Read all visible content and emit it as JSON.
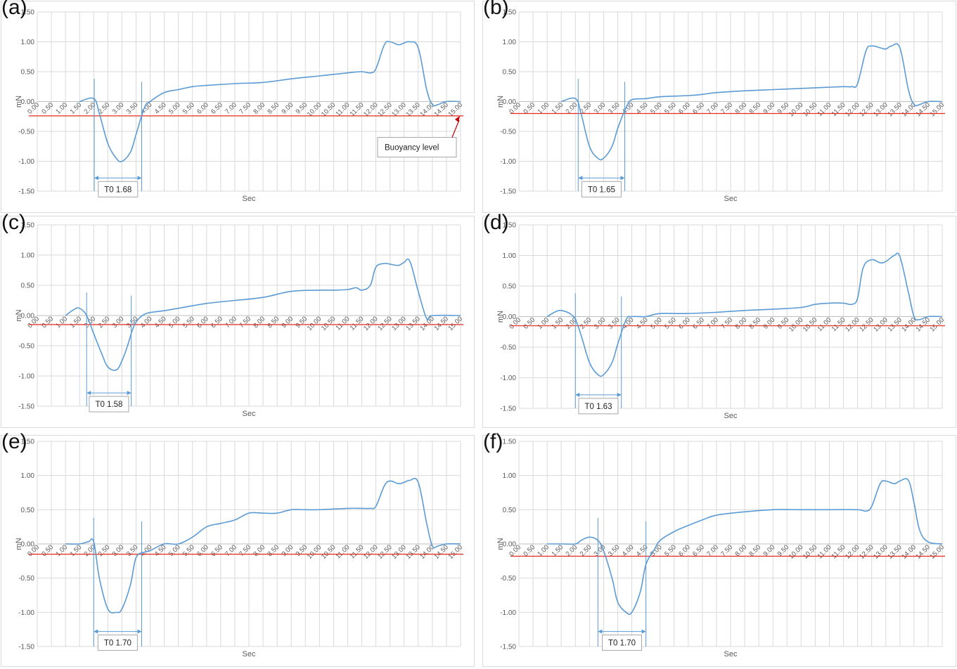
{
  "chart_data": [
    {
      "panel_label": "(a)",
      "type": "line",
      "xlabel": "Sec",
      "ylabel": "mN",
      "ylim": [
        -1.5,
        1.5
      ],
      "xlim": [
        0,
        15
      ],
      "buoyancy_level": -0.24,
      "t0_label": "T0 1.68",
      "t0_start": 2.02,
      "t0_end": 3.7,
      "annotation": {
        "text": "Buoyancy level",
        "target_x": 15.0
      },
      "series": [
        {
          "x": [
            1.5,
            2.0,
            2.2,
            2.5,
            2.8,
            3.0,
            3.3,
            3.5,
            3.8,
            4.0,
            4.5,
            5.0,
            5.5,
            6.0,
            7.0,
            8.0,
            9.0,
            10.0,
            11.0,
            11.5,
            11.8,
            12.0,
            12.3,
            12.5,
            12.8,
            13.0,
            13.2,
            13.5,
            13.8,
            14.0,
            14.2,
            14.5,
            15.0
          ],
          "y": [
            0.0,
            0.05,
            -0.2,
            -0.7,
            -0.95,
            -1.0,
            -0.85,
            -0.55,
            -0.1,
            0.0,
            0.15,
            0.2,
            0.25,
            0.27,
            0.3,
            0.32,
            0.38,
            0.43,
            0.48,
            0.5,
            0.48,
            0.55,
            0.95,
            1.0,
            0.95,
            0.98,
            1.0,
            0.9,
            0.2,
            -0.05,
            -0.05,
            0.0,
            0.0
          ]
        }
      ]
    },
    {
      "panel_label": "(b)",
      "type": "line",
      "xlabel": "Sec",
      "ylabel": "mN",
      "ylim": [
        -1.5,
        1.5
      ],
      "xlim": [
        0,
        15
      ],
      "buoyancy_level": -0.2,
      "t0_label": "T0 1.65",
      "t0_start": 2.1,
      "t0_end": 3.75,
      "series": [
        {
          "x": [
            1.5,
            2.0,
            2.2,
            2.5,
            2.8,
            3.0,
            3.3,
            3.5,
            3.8,
            4.0,
            4.5,
            5.0,
            6.0,
            6.5,
            7.0,
            8.0,
            9.0,
            10.0,
            11.0,
            11.5,
            11.8,
            12.0,
            12.3,
            12.5,
            12.8,
            13.0,
            13.2,
            13.5,
            13.8,
            14.0,
            14.2,
            14.5,
            15.0
          ],
          "y": [
            0.0,
            0.05,
            -0.2,
            -0.75,
            -0.95,
            -0.95,
            -0.75,
            -0.45,
            -0.1,
            0.03,
            0.05,
            0.08,
            0.1,
            0.12,
            0.15,
            0.18,
            0.2,
            0.22,
            0.24,
            0.25,
            0.25,
            0.3,
            0.85,
            0.93,
            0.9,
            0.88,
            0.93,
            0.9,
            0.2,
            -0.05,
            -0.05,
            0.0,
            0.0
          ]
        }
      ]
    },
    {
      "panel_label": "(c)",
      "type": "line",
      "xlabel": "Sec",
      "ylabel": "mN",
      "ylim": [
        -1.5,
        1.5
      ],
      "xlim": [
        0,
        15
      ],
      "buoyancy_level": -0.15,
      "t0_label": "T0 1.58",
      "t0_start": 1.75,
      "t0_end": 3.33,
      "series": [
        {
          "x": [
            1.0,
            1.3,
            1.5,
            1.75,
            2.0,
            2.3,
            2.5,
            2.8,
            3.0,
            3.2,
            3.4,
            3.6,
            3.8,
            4.0,
            4.5,
            5.0,
            6.0,
            7.0,
            8.0,
            9.0,
            10.0,
            10.5,
            11.0,
            11.3,
            11.5,
            11.8,
            12.0,
            12.3,
            12.5,
            12.8,
            13.0,
            13.2,
            13.5,
            13.8,
            14.0,
            15.0
          ],
          "y": [
            0.0,
            0.1,
            0.12,
            0.0,
            -0.3,
            -0.65,
            -0.85,
            -0.9,
            -0.75,
            -0.5,
            -0.2,
            -0.05,
            0.02,
            0.05,
            0.08,
            0.12,
            0.2,
            0.25,
            0.3,
            0.4,
            0.42,
            0.42,
            0.43,
            0.46,
            0.42,
            0.5,
            0.8,
            0.86,
            0.85,
            0.83,
            0.88,
            0.9,
            0.4,
            -0.05,
            0.0,
            0.0
          ]
        }
      ]
    },
    {
      "panel_label": "(d)",
      "type": "line",
      "xlabel": "Sec",
      "ylabel": "mN",
      "ylim": [
        -1.5,
        1.5
      ],
      "xlim": [
        0,
        15
      ],
      "buoyancy_level": -0.15,
      "t0_label": "T0 1.63",
      "t0_start": 2.0,
      "t0_end": 3.63,
      "series": [
        {
          "x": [
            1.0,
            1.3,
            1.5,
            1.8,
            2.0,
            2.2,
            2.5,
            2.8,
            3.0,
            3.3,
            3.5,
            3.8,
            4.0,
            4.5,
            5.0,
            6.0,
            7.0,
            8.0,
            9.0,
            10.0,
            10.5,
            11.0,
            11.5,
            11.8,
            12.0,
            12.2,
            12.5,
            12.8,
            13.0,
            13.3,
            13.5,
            13.8,
            14.0,
            14.2,
            14.5,
            15.0
          ],
          "y": [
            0.0,
            0.08,
            0.1,
            0.05,
            -0.05,
            -0.3,
            -0.75,
            -0.95,
            -0.95,
            -0.75,
            -0.45,
            -0.05,
            0.0,
            0.0,
            0.05,
            0.05,
            0.07,
            0.1,
            0.12,
            0.15,
            0.2,
            0.22,
            0.22,
            0.2,
            0.3,
            0.8,
            0.93,
            0.88,
            0.9,
            1.0,
            0.98,
            0.4,
            0.0,
            -0.05,
            0.0,
            0.0
          ]
        }
      ]
    },
    {
      "panel_label": "(e)",
      "type": "line",
      "xlabel": "Sec",
      "ylabel": "mN",
      "ylim": [
        -1.5,
        1.5
      ],
      "xlim": [
        0,
        15
      ],
      "buoyancy_level": -0.15,
      "t0_label": "T0 1.70",
      "t0_start": 2.0,
      "t0_end": 3.7,
      "series": [
        {
          "x": [
            1.0,
            1.5,
            1.8,
            2.0,
            2.2,
            2.5,
            2.8,
            3.0,
            3.3,
            3.5,
            3.8,
            4.0,
            4.5,
            5.0,
            5.5,
            6.0,
            6.5,
            7.0,
            7.5,
            8.0,
            8.5,
            9.0,
            9.5,
            10.0,
            11.0,
            11.5,
            11.8,
            12.0,
            12.3,
            12.5,
            12.8,
            13.0,
            13.2,
            13.5,
            13.8,
            14.0,
            14.2,
            14.5,
            15.0
          ],
          "y": [
            0.0,
            0.0,
            0.03,
            0.03,
            -0.5,
            -0.95,
            -1.0,
            -0.95,
            -0.6,
            -0.2,
            -0.12,
            -0.1,
            0.0,
            0.0,
            0.1,
            0.25,
            0.3,
            0.35,
            0.45,
            0.45,
            0.45,
            0.5,
            0.5,
            0.5,
            0.52,
            0.52,
            0.52,
            0.55,
            0.85,
            0.92,
            0.88,
            0.9,
            0.93,
            0.9,
            0.3,
            -0.03,
            -0.03,
            0.0,
            0.0
          ]
        }
      ]
    },
    {
      "panel_label": "(f)",
      "type": "line",
      "xlabel": "Sec",
      "ylabel": "mN",
      "ylim": [
        -1.5,
        1.5
      ],
      "xlim": [
        0,
        15
      ],
      "buoyancy_level": -0.18,
      "t0_label": "T0 1.70",
      "t0_start": 2.8,
      "t0_end": 4.5,
      "series": [
        {
          "x": [
            1.0,
            1.5,
            2.0,
            2.2,
            2.5,
            2.8,
            3.0,
            3.3,
            3.5,
            3.8,
            4.0,
            4.3,
            4.5,
            4.8,
            5.0,
            5.5,
            6.0,
            6.5,
            7.0,
            8.0,
            9.0,
            10.0,
            11.0,
            12.0,
            12.3,
            12.5,
            12.8,
            13.0,
            13.3,
            13.5,
            13.8,
            14.0,
            14.2,
            14.5,
            15.0
          ],
          "y": [
            0.0,
            0.0,
            0.0,
            0.05,
            0.1,
            0.05,
            -0.1,
            -0.5,
            -0.85,
            -1.0,
            -1.0,
            -0.7,
            -0.3,
            -0.08,
            0.05,
            0.18,
            0.27,
            0.35,
            0.42,
            0.47,
            0.5,
            0.5,
            0.5,
            0.5,
            0.48,
            0.55,
            0.88,
            0.92,
            0.88,
            0.92,
            0.93,
            0.6,
            0.2,
            0.03,
            0.0
          ]
        }
      ]
    }
  ]
}
